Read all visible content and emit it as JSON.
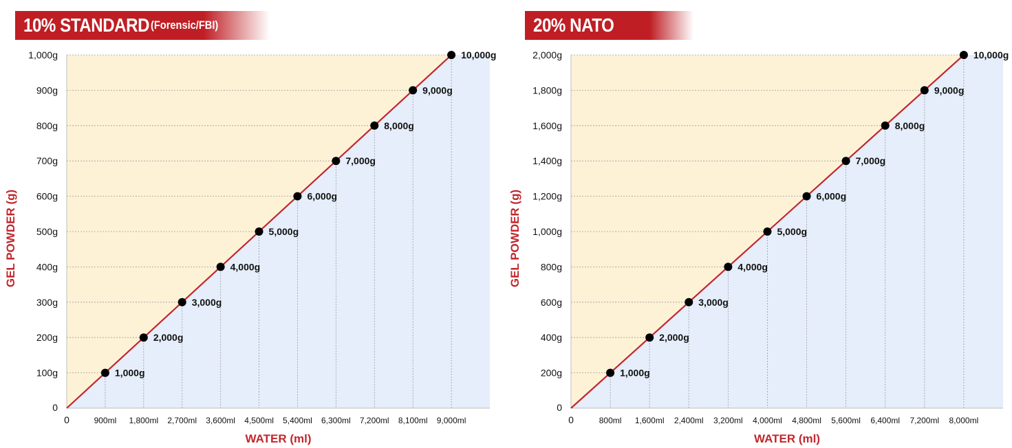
{
  "chart_data": [
    {
      "type": "line",
      "title": "10% STANDARD",
      "subtitle": "(Forensic/FBI)",
      "xlabel": "WATER (ml)",
      "ylabel": "GEL POWDER (g)",
      "x_tick_labels": [
        "900ml",
        "1,800ml",
        "2,700ml",
        "3,600ml",
        "4,500ml",
        "5,400ml",
        "6,300ml",
        "7,200ml",
        "8,100ml",
        "9,000ml"
      ],
      "y_tick_labels": [
        "100g",
        "200g",
        "300g",
        "400g",
        "500g",
        "600g",
        "700g",
        "800g",
        "900g",
        "1,000g"
      ],
      "x": [
        900,
        1800,
        2700,
        3600,
        4500,
        5400,
        6300,
        7200,
        8100,
        9000
      ],
      "y": [
        100,
        200,
        300,
        400,
        500,
        600,
        700,
        800,
        900,
        1000
      ],
      "point_labels": [
        "1,000g",
        "2,000g",
        "3,000g",
        "4,000g",
        "5,000g",
        "6,000g",
        "7,000g",
        "8,000g",
        "9,000g",
        "10,000g"
      ],
      "xlim": [
        0,
        9900
      ],
      "ylim": [
        0,
        1000
      ],
      "origin_label_x": "0",
      "origin_label_y": "0",
      "grid": true,
      "colors": {
        "line": "#c1272d",
        "upper_region": "#fdf2d6",
        "lower_region": "#e5eefa",
        "title": "#c1272d"
      }
    },
    {
      "type": "line",
      "title": "20% NATO",
      "subtitle": "",
      "xlabel": "WATER (ml)",
      "ylabel": "GEL POWDER (g)",
      "x_tick_labels": [
        "800ml",
        "1,600ml",
        "2,400ml",
        "3,200ml",
        "4,000ml",
        "4,800ml",
        "5,600ml",
        "6,400ml",
        "7,200ml",
        "8,000ml"
      ],
      "y_tick_labels": [
        "200g",
        "400g",
        "600g",
        "800g",
        "1,000g",
        "1,200g",
        "1,400g",
        "1,600g",
        "1,800g",
        "2,000g"
      ],
      "x": [
        800,
        1600,
        2400,
        3200,
        4000,
        4800,
        5600,
        6400,
        7200,
        8000
      ],
      "y": [
        200,
        400,
        600,
        800,
        1000,
        1200,
        1400,
        1600,
        1800,
        2000
      ],
      "point_labels": [
        "1,000g",
        "2,000g",
        "3,000g",
        "4,000g",
        "5,000g",
        "6,000g",
        "7,000g",
        "8,000g",
        "9,000g",
        "10,000g"
      ],
      "xlim": [
        0,
        8800
      ],
      "ylim": [
        0,
        2000
      ],
      "origin_label_x": "0",
      "origin_label_y": "0",
      "grid": true,
      "colors": {
        "line": "#c1272d",
        "upper_region": "#fdf2d6",
        "lower_region": "#e5eefa",
        "title": "#c1272d"
      }
    }
  ]
}
